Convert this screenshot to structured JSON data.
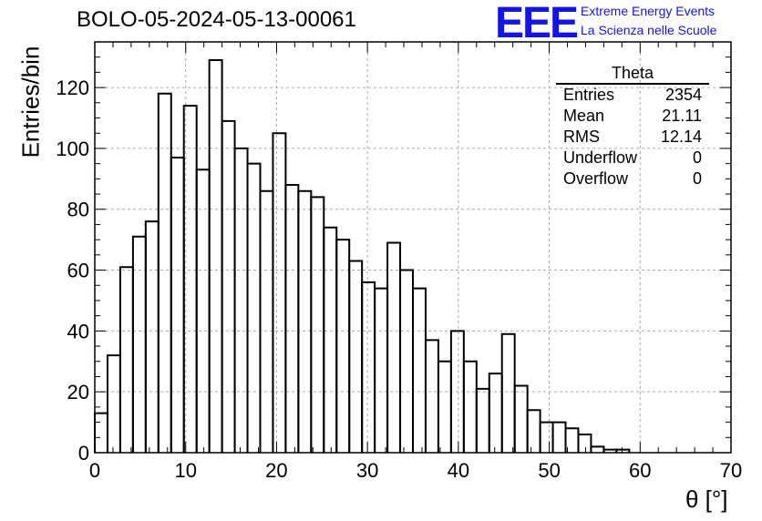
{
  "header": {
    "title": "BOLO-05-2024-05-13-00061",
    "logo_mark": "EEE",
    "logo_line1": "Extreme Energy Events",
    "logo_line2": "La Scienza nelle Scuole"
  },
  "stats_box": {
    "title": "Theta",
    "rows": [
      {
        "label": "Entries",
        "value": "2354"
      },
      {
        "label": "Mean",
        "value": "21.11"
      },
      {
        "label": "RMS",
        "value": "12.14"
      },
      {
        "label": "Underflow",
        "value": "0"
      },
      {
        "label": "Overflow",
        "value": "0"
      }
    ]
  },
  "chart_data": {
    "type": "bar",
    "histogram": true,
    "xlabel": "θ [°]",
    "ylabel": "Entries/bin",
    "xlim": [
      0,
      70
    ],
    "ylim": [
      0,
      135
    ],
    "bin_width": 1.4,
    "bin_edges_start": 0,
    "values": [
      13,
      32,
      61,
      71,
      76,
      118,
      97,
      114,
      93,
      129,
      109,
      100,
      95,
      86,
      105,
      88,
      86,
      84,
      74,
      70,
      63,
      56,
      54,
      69,
      60,
      54,
      37,
      30,
      40,
      30,
      21,
      26,
      39,
      22,
      14,
      10,
      10,
      8,
      6,
      2,
      1,
      1
    ],
    "xticks": [
      0,
      10,
      20,
      30,
      40,
      50,
      60,
      70
    ],
    "yticks": [
      0,
      20,
      40,
      60,
      80,
      100,
      120
    ],
    "grid": true,
    "line_color": "#000000",
    "grid_color": "#aaaaaa"
  }
}
